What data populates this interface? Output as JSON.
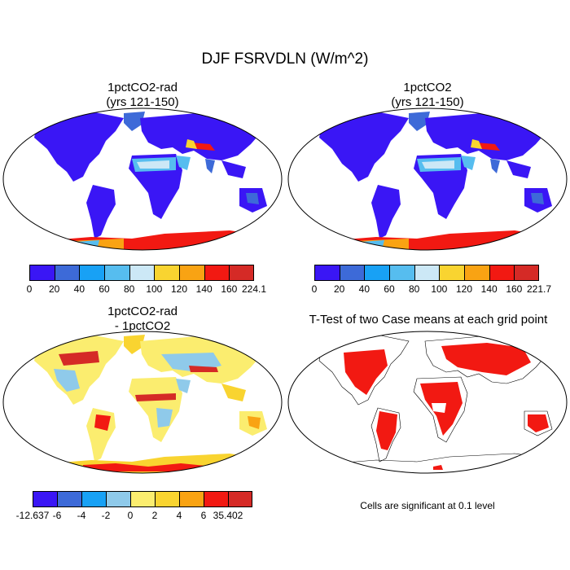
{
  "title": "DJF FSRVDLN (W/m^2)",
  "panels": [
    {
      "title_line1": "1pctCO2-rad",
      "title_line2": "(yrs 121-150)"
    },
    {
      "title_line1": "1pctCO2",
      "title_line2": "(yrs 121-150)"
    },
    {
      "title_line1": "1pctCO2-rad",
      "title_line2": "- 1pctCO2"
    },
    {
      "title_line1": "T-Test of two Case means at each grid point",
      "title_line2": ""
    }
  ],
  "colorbars": {
    "cb1": {
      "labels": [
        "0",
        "20",
        "40",
        "60",
        "80",
        "100",
        "120",
        "140",
        "160",
        "224.1"
      ],
      "colors": [
        "#3a16f5",
        "#3d6ad8",
        "#18a1f5",
        "#56bdef",
        "#cce8f6",
        "#f9d430",
        "#f9a313",
        "#f21912",
        "#d52a26"
      ]
    },
    "cb2": {
      "labels": [
        "0",
        "20",
        "40",
        "60",
        "80",
        "100",
        "120",
        "140",
        "160",
        "221.7"
      ],
      "colors": [
        "#3a16f5",
        "#3d6ad8",
        "#18a1f5",
        "#56bdef",
        "#cce8f6",
        "#f9d430",
        "#f9a313",
        "#f21912",
        "#d52a26"
      ]
    },
    "cb3": {
      "labels": [
        "-12.637",
        "-6",
        "-4",
        "-2",
        "0",
        "2",
        "4",
        "6",
        "35.402"
      ],
      "colors": [
        "#3a16f5",
        "#3d6ad8",
        "#18a1f5",
        "#8fcaea",
        "#fbed6f",
        "#f9d430",
        "#f9a313",
        "#f21912",
        "#d52a26"
      ]
    }
  },
  "note": "Cells are significant at 0.1 level",
  "colors": {
    "ocean": "#ffffff",
    "land_low": "#3a16f5",
    "land_mid": "#56bdef",
    "desert": "#cce8f6",
    "antarctic": "#f21912",
    "diff_base": "#fbed6f",
    "diff_neg": "#8fcaea",
    "sig": "#f21912"
  }
}
